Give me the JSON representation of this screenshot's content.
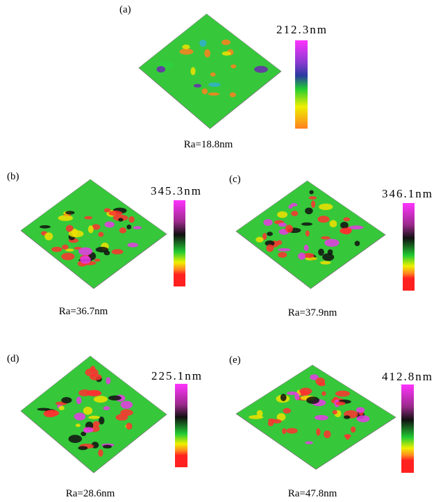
{
  "panels": [
    {
      "label": "(a)",
      "scale_max": "212.3nm",
      "roughness": "Ra=18.8nm"
    },
    {
      "label": "(b)",
      "scale_max": "345.3nm",
      "roughness": "Ra=36.7nm"
    },
    {
      "label": "(c)",
      "scale_max": "346.1nm",
      "roughness": "Ra=37.9nm"
    },
    {
      "label": "(d)",
      "scale_max": "225.1nm",
      "roughness": "Ra=28.6nm"
    },
    {
      "label": "(e)",
      "scale_max": "412.8nm",
      "roughness": "Ra=47.8nm"
    }
  ]
}
